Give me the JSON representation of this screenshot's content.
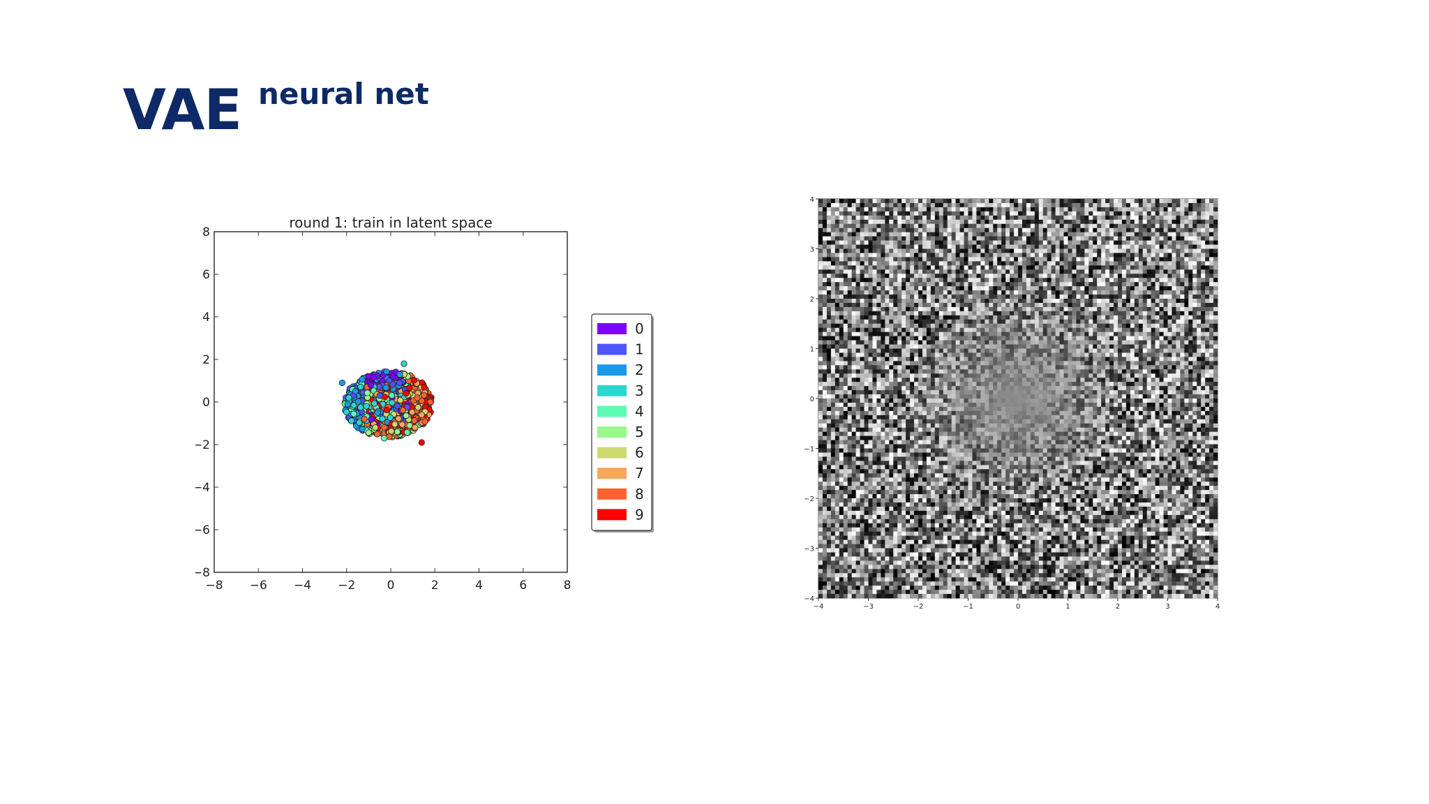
{
  "slide": {
    "title": "VAE",
    "title_superscript": "neural net"
  },
  "chart_data": [
    {
      "type": "scatter",
      "title": "round 1: train in latent space",
      "xlabel": "",
      "ylabel": "",
      "xlim": [
        -8,
        8
      ],
      "ylim": [
        -8,
        8
      ],
      "x_ticks": [
        -8,
        -6,
        -4,
        -2,
        0,
        2,
        4,
        6,
        8
      ],
      "y_ticks": [
        -8,
        -6,
        -4,
        -2,
        0,
        2,
        4,
        6,
        8
      ],
      "grid": false,
      "legend_position": "right",
      "legend": [
        {
          "label": "0",
          "color": "#7f00ff"
        },
        {
          "label": "1",
          "color": "#4c56f9"
        },
        {
          "label": "2",
          "color": "#1a9ae9"
        },
        {
          "label": "3",
          "color": "#2cd6d0"
        },
        {
          "label": "4",
          "color": "#5efab2"
        },
        {
          "label": "5",
          "color": "#98f98c"
        },
        {
          "label": "6",
          "color": "#ccd96e"
        },
        {
          "label": "7",
          "color": "#f8a65a"
        },
        {
          "label": "8",
          "color": "#ff6232"
        },
        {
          "label": "9",
          "color": "#ff0000"
        }
      ],
      "cluster": {
        "points": [
          {
            "x": -0.9,
            "y": 0.8,
            "class": "0"
          },
          {
            "x": 0.1,
            "y": 1.2,
            "class": "0"
          },
          {
            "x": -0.5,
            "y": 0.3,
            "class": "1"
          },
          {
            "x": 0.4,
            "y": 0.9,
            "class": "1"
          },
          {
            "x": -1.6,
            "y": 0.5,
            "class": "2"
          },
          {
            "x": -2.2,
            "y": 0.9,
            "class": "2"
          },
          {
            "x": -1.1,
            "y": -0.2,
            "class": "3"
          },
          {
            "x": -1.9,
            "y": 0.2,
            "class": "3"
          },
          {
            "x": -0.3,
            "y": -1.7,
            "class": "4"
          },
          {
            "x": 0.3,
            "y": -1.4,
            "class": "5"
          },
          {
            "x": -0.7,
            "y": -1.2,
            "class": "6"
          },
          {
            "x": 1.4,
            "y": -0.6,
            "class": "7"
          },
          {
            "x": 1.1,
            "y": -1.2,
            "class": "7"
          },
          {
            "x": 1.2,
            "y": 0.2,
            "class": "8"
          },
          {
            "x": -1.2,
            "y": -0.8,
            "class": "8"
          },
          {
            "x": 1.4,
            "y": -1.9,
            "class": "9"
          },
          {
            "x": 0.7,
            "y": 0.4,
            "class": "9"
          },
          {
            "x": 0.6,
            "y": 1.8,
            "class": "3"
          },
          {
            "x": 1.8,
            "y": 0.0,
            "class": "8"
          }
        ]
      }
    },
    {
      "type": "heatmap",
      "xlim": [
        -4,
        4
      ],
      "ylim": [
        -4,
        4
      ],
      "x_ticks": [
        -4,
        -3,
        -2,
        -1,
        0,
        1,
        2,
        3,
        4
      ],
      "y_ticks": [
        -4,
        -3,
        -2,
        -1,
        0,
        1,
        2,
        3,
        4
      ],
      "colormap": "grayscale",
      "description_center": [
        0,
        0
      ],
      "center_value": 0.55,
      "edge_noise": 1.0
    }
  ]
}
